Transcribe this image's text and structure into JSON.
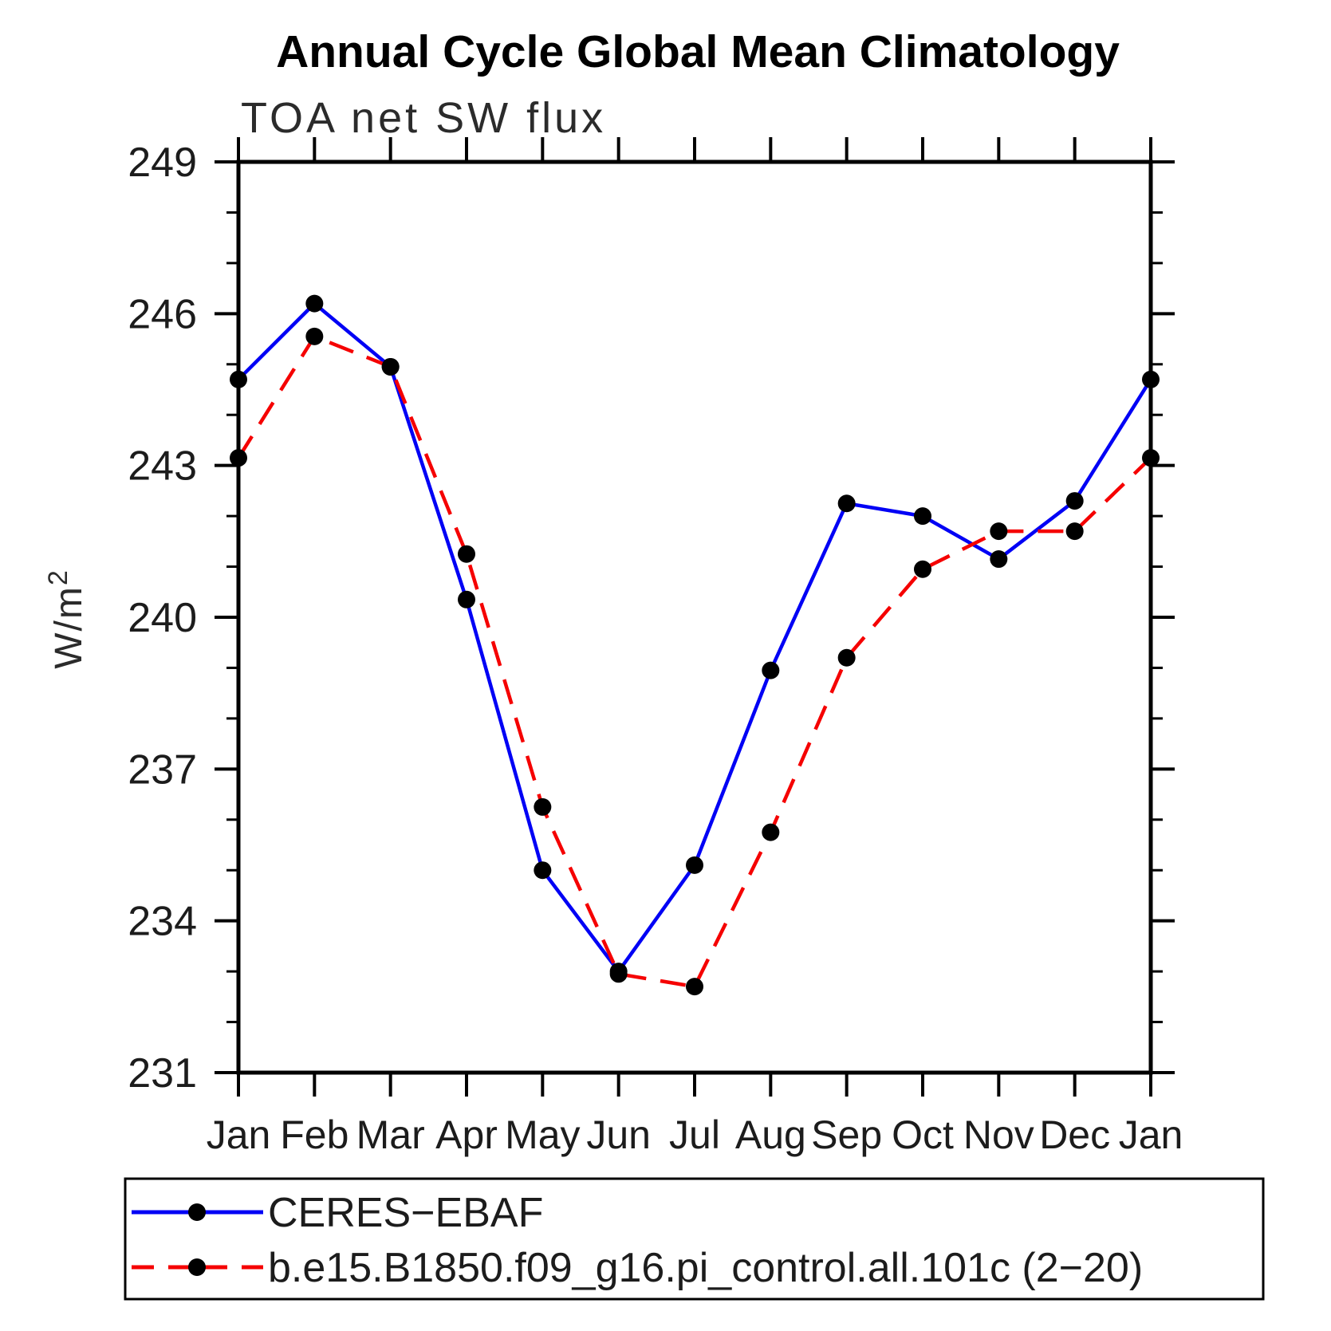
{
  "header": {
    "title": "Annual Cycle Global Mean Climatology",
    "subtitle": "TOA net SW flux"
  },
  "axes": {
    "y_label_base": "W/m",
    "y_label_exp": "2"
  },
  "colors": {
    "ceres_line": "#0000f5",
    "model_line": "#f50000",
    "marker": "#000000",
    "axis": "#000000"
  },
  "legend": {
    "items": [
      {
        "label": "CERES−EBAF",
        "series": "ceres",
        "style": "solid"
      },
      {
        "label": "b.e15.B1850.f09_g16.pi_control.all.101c (2−20)",
        "series": "model",
        "style": "dashed"
      }
    ]
  },
  "chart_data": {
    "type": "line",
    "title": "Annual Cycle Global Mean Climatology",
    "subtitle": "TOA net SW flux",
    "ylabel": "W/m^2",
    "xlabel": "",
    "ylim": [
      231,
      249
    ],
    "y_major_step": 3,
    "y_minor_step": 1,
    "grid": false,
    "legend_position": "bottom",
    "categories": [
      "Jan",
      "Feb",
      "Mar",
      "Apr",
      "May",
      "Jun",
      "Jul",
      "Aug",
      "Sep",
      "Oct",
      "Nov",
      "Dec",
      "Jan"
    ],
    "y_tick_labels": [
      "249",
      "246",
      "243",
      "240",
      "237",
      "234",
      "231"
    ],
    "series": [
      {
        "name": "CERES-EBAF",
        "color_key": "ceres_line",
        "dash": false,
        "values": [
          244.7,
          246.2,
          244.95,
          240.35,
          235.0,
          233.0,
          235.1,
          238.95,
          242.25,
          242.0,
          241.15,
          242.3,
          244.7
        ]
      },
      {
        "name": "b.e15.B1850.f09_g16.pi_control.all.101c (2-20)",
        "color_key": "model_line",
        "dash": true,
        "values": [
          243.15,
          245.55,
          244.95,
          241.25,
          236.25,
          232.95,
          232.7,
          235.75,
          239.2,
          240.95,
          241.7,
          241.7,
          243.15
        ]
      }
    ]
  }
}
